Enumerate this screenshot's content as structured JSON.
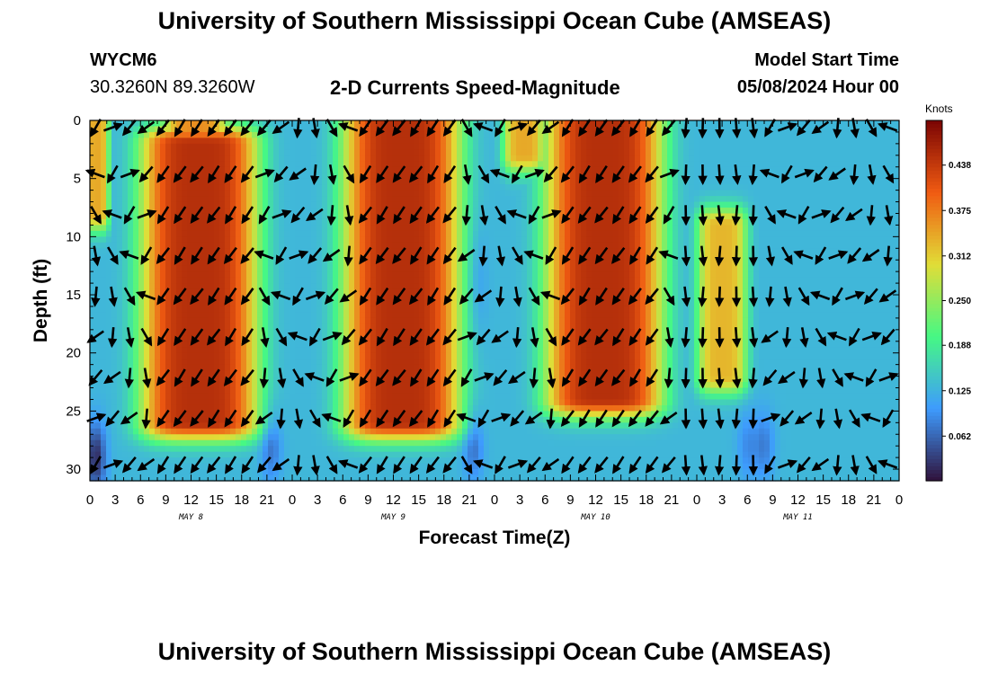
{
  "header": {
    "title": "University of Southern Mississippi Ocean Cube (AMSEAS)",
    "station_id": "WYCM6",
    "station_coords": "30.3260N  89.3260W",
    "chart_title": "2-D Currents Speed-Magnitude",
    "model_start_label": "Model Start Time",
    "model_start_value": "05/08/2024 Hour 00"
  },
  "footer": {
    "title": "University of Southern Mississippi Ocean Cube (AMSEAS)"
  },
  "chart_data": {
    "type": "heatmap",
    "xlabel": "Forecast Time(Z)",
    "ylabel": "Depth (ft)",
    "colorbar_label": "Knots",
    "colorbar_ticks": [
      "0.062",
      "0.125",
      "0.188",
      "0.250",
      "0.312",
      "0.375",
      "0.438"
    ],
    "colorbar_range": [
      0,
      0.5
    ],
    "x_hours_range": [
      0,
      96
    ],
    "x_tick_labels": [
      "0",
      "3",
      "6",
      "9",
      "12",
      "15",
      "18",
      "21",
      "0",
      "3",
      "6",
      "9",
      "12",
      "15",
      "18",
      "21",
      "0",
      "3",
      "6",
      "9",
      "12",
      "15",
      "18",
      "21",
      "0",
      "3",
      "6",
      "9",
      "12",
      "15",
      "18",
      "21",
      "0"
    ],
    "day_labels": [
      {
        "label": "MAY 8",
        "hour": 12
      },
      {
        "label": "MAY 9",
        "hour": 36
      },
      {
        "label": "MAY 10",
        "hour": 60
      },
      {
        "label": "MAY 11",
        "hour": 84
      }
    ],
    "depth_range": [
      0,
      31
    ],
    "y_ticks": [
      0,
      5,
      10,
      15,
      20,
      25,
      30
    ],
    "speed_peaks_knots": [
      {
        "hour_center": 13,
        "hour_width": 7,
        "depth_min": 2,
        "depth_max": 26,
        "peak": 0.45
      },
      {
        "hour_center": 12.5,
        "hour_width": 4,
        "depth_min": 0,
        "depth_max": 9,
        "peak": 0.36
      },
      {
        "hour_center": 37,
        "hour_width": 7,
        "depth_min": 0,
        "depth_max": 26,
        "peak": 0.45
      },
      {
        "hour_center": 61,
        "hour_width": 7,
        "depth_min": 0,
        "depth_max": 24,
        "peak": 0.45
      },
      {
        "hour_center": 51.5,
        "hour_width": 2.5,
        "depth_min": 0,
        "depth_max": 3,
        "peak": 0.34
      },
      {
        "hour_center": 75,
        "hour_width": 3,
        "depth_min": 9,
        "depth_max": 22,
        "peak": 0.33
      },
      {
        "hour_center": 0.8,
        "hour_width": 1.5,
        "depth_min": 0,
        "depth_max": 8,
        "peak": 0.34
      }
    ],
    "speed_lows_knots": [
      {
        "hour_center": 0.7,
        "depth_center": 29,
        "depth_width": 3,
        "dip": 0.11
      },
      {
        "hour_center": 21.5,
        "depth_center": 28,
        "depth_width": 3,
        "dip": 0.06
      },
      {
        "hour_center": 45.5,
        "depth_center": 28,
        "depth_width": 3,
        "dip": 0.06
      },
      {
        "hour_center": 46,
        "depth_center": 14,
        "depth_width": 5,
        "dip": 0.03
      },
      {
        "hour_center": 78,
        "depth_center": 28,
        "depth_width": 3,
        "dip": 0.04
      },
      {
        "hour_center": 80,
        "depth_center": 28,
        "depth_width": 3,
        "dip": 0.05
      }
    ],
    "vector_hours": [
      0,
      2,
      4,
      6,
      8,
      10,
      12,
      14,
      16,
      18,
      20,
      22,
      24,
      26,
      28,
      30,
      32,
      34,
      36,
      38,
      40,
      42,
      44,
      46,
      48,
      50,
      52,
      54,
      56,
      58,
      60,
      62,
      64,
      66,
      68,
      70,
      72,
      74,
      76,
      78,
      80,
      82,
      84,
      86,
      88,
      90,
      92,
      94
    ],
    "vector_depths": [
      0,
      4,
      7.5,
      11,
      14.5,
      18,
      21.5,
      25,
      29
    ],
    "colors": {
      "colormap": [
        "#30123b",
        "#3e9bfe",
        "#46f884",
        "#e1dd37",
        "#f05b12",
        "#7a0403"
      ],
      "arrow": "#000000",
      "frame": "#000000"
    }
  }
}
